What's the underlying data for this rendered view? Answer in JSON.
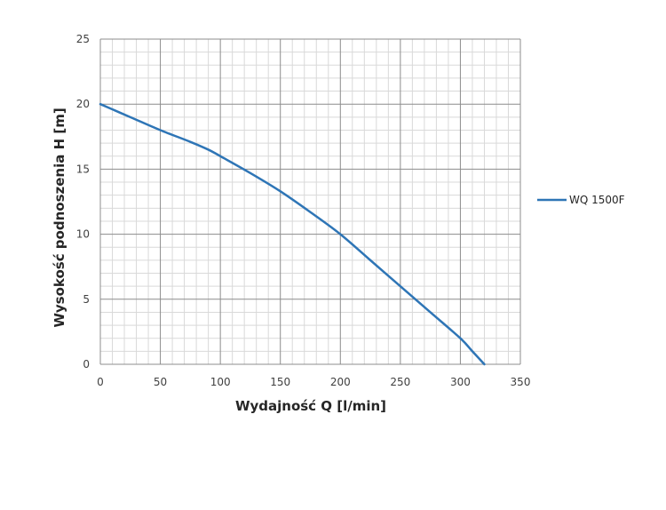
{
  "chart_data": {
    "type": "line",
    "title": "",
    "xlabel": "Wydajność Q [l/min]",
    "ylabel": "Wysokość podnoszenia H [m]",
    "xlim": [
      0,
      350
    ],
    "ylim": [
      0,
      25
    ],
    "x_ticks": [
      "0",
      "50",
      "100",
      "150",
      "200",
      "250",
      "300",
      "350"
    ],
    "y_ticks": [
      "0",
      "5",
      "10",
      "15",
      "20",
      "25"
    ],
    "grid": true,
    "legend_position": "right",
    "series": [
      {
        "name": "WQ 1500F",
        "color": "#2e75b6",
        "x": [
          0,
          25,
          50,
          75,
          90,
          100,
          125,
          150,
          175,
          200,
          225,
          250,
          275,
          300,
          310,
          320
        ],
        "y": [
          20,
          19,
          18,
          17.1,
          16.5,
          16,
          14.7,
          13.3,
          11.7,
          10,
          8,
          6,
          4,
          2,
          1,
          0
        ]
      }
    ]
  }
}
